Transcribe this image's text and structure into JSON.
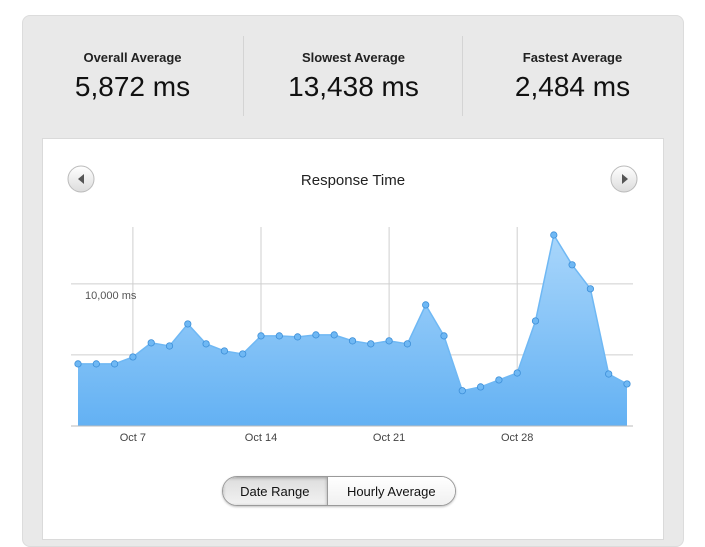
{
  "stats": [
    {
      "label": "Overall Average",
      "value": "5,872 ms"
    },
    {
      "label": "Slowest Average",
      "value": "13,438 ms"
    },
    {
      "label": "Fastest Average",
      "value": "2,484 ms"
    }
  ],
  "chart_data": {
    "type": "area",
    "title": "Response Time",
    "categories": [
      null,
      null,
      null,
      "Oct 7",
      null,
      null,
      null,
      null,
      null,
      null,
      "Oct 14",
      null,
      null,
      null,
      null,
      null,
      null,
      "Oct 21",
      null,
      null,
      null,
      null,
      null,
      null,
      "Oct 28",
      null,
      null,
      null,
      null,
      null,
      null
    ],
    "values": [
      4370,
      4370,
      4370,
      4860,
      5850,
      5630,
      7180,
      5780,
      5280,
      5070,
      6340,
      6340,
      6270,
      6410,
      6410,
      5990,
      5780,
      5990,
      5780,
      8520,
      6340,
      2484,
      2750,
      3240,
      3730,
      7390,
      13438,
      11340,
      9650,
      3660,
      2960
    ],
    "color": "#6fb8f4",
    "ylim": [
      0,
      14000
    ],
    "yticks": [
      {
        "value": 10000,
        "label": "10,000 ms"
      }
    ],
    "gridlines": [
      5000,
      10000
    ],
    "grid": true
  },
  "buttons": [
    {
      "label": "Date Range",
      "selected": true
    },
    {
      "label": "Hourly Average",
      "selected": false
    }
  ]
}
